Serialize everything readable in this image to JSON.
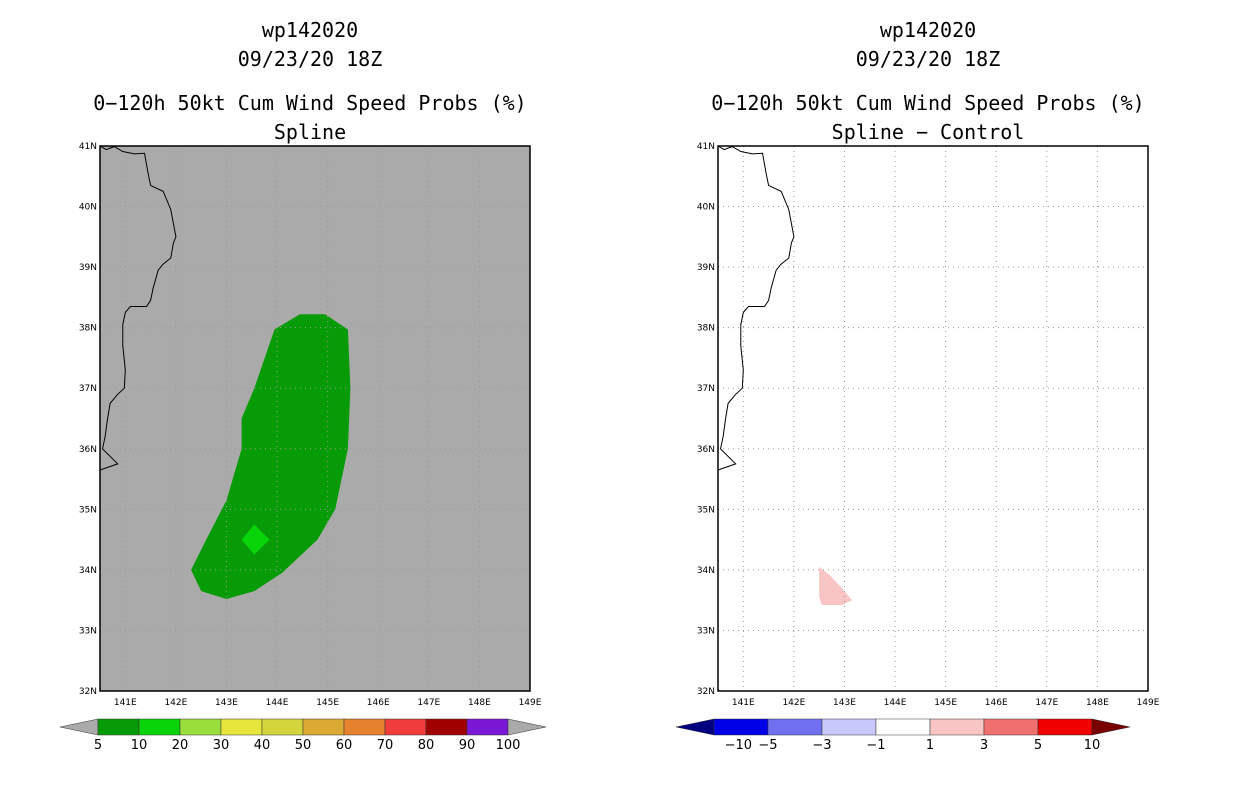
{
  "panels": [
    {
      "storm_id": "wp142020",
      "datetime": "09/23/20 18Z",
      "title_line": "0−120h 50kt Cum Wind Speed Probs (%)",
      "subtitle": "Spline"
    },
    {
      "storm_id": "wp142020",
      "datetime": "09/23/20 18Z",
      "title_line": "0−120h 50kt Cum Wind Speed Probs (%)",
      "subtitle": "Spline − Control"
    }
  ],
  "colors": {
    "left_background": "#aaaaaa",
    "right_background": "#ffffff",
    "coast": "#000000",
    "grid": "#9a9a9a"
  },
  "chart_data": [
    {
      "type": "heatmap",
      "title": "0−120h 50kt Cum Wind Speed Probs (%) — Spline",
      "xlim": [
        140.5,
        149
      ],
      "ylim": [
        32,
        41
      ],
      "xticks": [
        141,
        142,
        143,
        144,
        145,
        146,
        147,
        148,
        149
      ],
      "xtick_labels": [
        "141E",
        "142E",
        "143E",
        "144E",
        "145E",
        "146E",
        "147E",
        "148E",
        "149E"
      ],
      "yticks": [
        32,
        33,
        34,
        35,
        36,
        37,
        38,
        39,
        40,
        41
      ],
      "ytick_labels": [
        "32N",
        "33N",
        "34N",
        "35N",
        "36N",
        "37N",
        "38N",
        "39N",
        "40N",
        "41N"
      ],
      "grid": true,
      "regions": [
        {
          "name": "prob-5-10-region",
          "level": "5-10",
          "color": "#079b07",
          "lonlat": [
            [
              143.95,
              37.97
            ],
            [
              144.45,
              38.22
            ],
            [
              144.95,
              38.22
            ],
            [
              145.4,
              37.97
            ],
            [
              145.45,
              37.0
            ],
            [
              145.4,
              36.0
            ],
            [
              145.15,
              35.0
            ],
            [
              144.8,
              34.5
            ],
            [
              144.1,
              33.95
            ],
            [
              143.55,
              33.65
            ],
            [
              143.0,
              33.52
            ],
            [
              142.5,
              33.65
            ],
            [
              142.3,
              34.0
            ],
            [
              142.6,
              34.5
            ],
            [
              143.0,
              35.15
            ],
            [
              143.3,
              36.0
            ],
            [
              143.3,
              36.5
            ],
            [
              143.55,
              37.0
            ],
            [
              143.95,
              37.97
            ]
          ]
        },
        {
          "name": "prob-10-20-region",
          "level": "10-20",
          "color": "#09d309",
          "lonlat": [
            [
              143.55,
              34.75
            ],
            [
              143.85,
              34.5
            ],
            [
              143.55,
              34.25
            ],
            [
              143.3,
              34.5
            ],
            [
              143.55,
              34.75
            ]
          ]
        }
      ],
      "colorbar": {
        "labels": [
          "5",
          "10",
          "20",
          "30",
          "40",
          "50",
          "60",
          "70",
          "80",
          "90",
          "100"
        ],
        "colors": [
          "#079b07",
          "#09d309",
          "#9ade3c",
          "#e6e63c",
          "#d4d43c",
          "#dcaa32",
          "#e6822d",
          "#f03c3c",
          "#a00000",
          "#7a18d6"
        ],
        "under_color": "#aaaaaa",
        "over_color": "#aaaaaa"
      }
    },
    {
      "type": "heatmap",
      "title": "0−120h 50kt Cum Wind Speed Probs (%) — Spline − Control",
      "xlim": [
        140.5,
        149
      ],
      "ylim": [
        32,
        41
      ],
      "xticks": [
        141,
        142,
        143,
        144,
        145,
        146,
        147,
        148,
        149
      ],
      "xtick_labels": [
        "141E",
        "142E",
        "143E",
        "144E",
        "145E",
        "146E",
        "147E",
        "148E",
        "149E"
      ],
      "yticks": [
        32,
        33,
        34,
        35,
        36,
        37,
        38,
        39,
        40,
        41
      ],
      "ytick_labels": [
        "32N",
        "33N",
        "34N",
        "35N",
        "36N",
        "37N",
        "38N",
        "39N",
        "40N",
        "41N"
      ],
      "grid": true,
      "regions": [
        {
          "name": "diff-1-3-region",
          "level": "1-3",
          "color": "#f8c4c4",
          "lonlat": [
            [
              142.5,
              34.05
            ],
            [
              142.7,
              33.92
            ],
            [
              142.95,
              33.7
            ],
            [
              143.15,
              33.5
            ],
            [
              142.95,
              33.42
            ],
            [
              142.55,
              33.42
            ],
            [
              142.5,
              33.55
            ],
            [
              142.5,
              34.05
            ]
          ]
        }
      ],
      "colorbar": {
        "labels": [
          "−10",
          "−5",
          "−3",
          "−1",
          "1",
          "3",
          "5",
          "10"
        ],
        "colors": [
          "#0000e6",
          "#7070f0",
          "#c8c8fa",
          "#ffffff",
          "#f8c4c4",
          "#f07070",
          "#f00000"
        ],
        "under_color": "#000080",
        "over_color": "#7a0000"
      }
    }
  ]
}
